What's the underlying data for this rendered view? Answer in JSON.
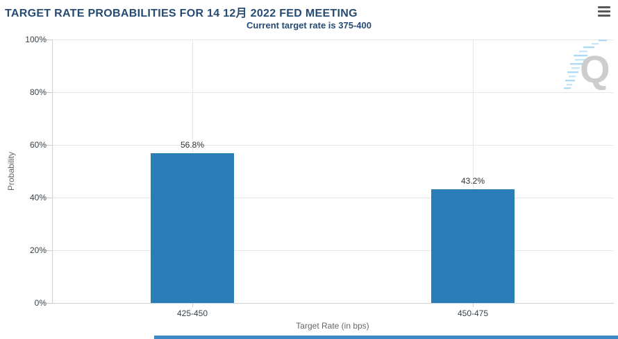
{
  "header": {
    "title": "TARGET RATE PROBABILITIES FOR 14 12月 2022 FED MEETING",
    "subtitle": "Current target rate is 375-400",
    "menu_icon": "hamburger-icon"
  },
  "watermark": {
    "letter": "Q"
  },
  "chart_data": {
    "type": "bar",
    "title": "TARGET RATE PROBABILITIES FOR 14 12月 2022 FED MEETING",
    "subtitle": "Current target rate is 375-400",
    "categories": [
      "425-450",
      "450-475"
    ],
    "values": [
      56.8,
      43.2
    ],
    "data_labels": [
      "56.8%",
      "43.2%"
    ],
    "xlabel": "Target Rate (in bps)",
    "ylabel": "Probability",
    "ylim": [
      0,
      100
    ],
    "ytick_step": 20,
    "ytick_suffix": "%",
    "grid": true,
    "legend": "none",
    "bar_color": "#2a7db6"
  },
  "colors": {
    "title_text": "#254a73",
    "bar": "#2a7db6",
    "gridline": "#e6e6e6",
    "axis_line": "#ccd0d8",
    "tick_label": "#37424a",
    "axis_title": "#666666",
    "menu_icon": "#58595b",
    "watermark_gray": "#c8c8c8",
    "watermark_blue": "#a5d8f5",
    "bottom_accent": "#3d89c5"
  }
}
